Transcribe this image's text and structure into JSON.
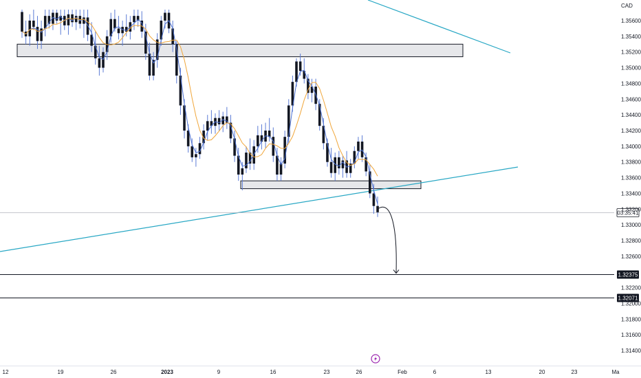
{
  "chart_data": {
    "type": "candlestick",
    "currency_label": "CAD",
    "price_range": [
      1.3126,
      1.3574
    ],
    "y_ticks": [
      1.356,
      1.354,
      1.352,
      1.35,
      1.348,
      1.346,
      1.344,
      1.342,
      1.34,
      1.338,
      1.336,
      1.334,
      1.332,
      1.33,
      1.328,
      1.326,
      1.322,
      1.32,
      1.318,
      1.316,
      1.314
    ],
    "y_tick_labels": [
      "1.35600",
      "1.35400",
      "1.35200",
      "1.35000",
      "1.34800",
      "1.34600",
      "1.34400",
      "1.34200",
      "1.34000",
      "1.33800",
      "1.33600",
      "1.33400",
      "1.33200",
      "1.33000",
      "1.32800",
      "1.32600",
      "1.32200",
      "1.32000",
      "1.31800",
      "1.31600",
      "1.31400"
    ],
    "x_ticks": [
      {
        "label": "12",
        "x": 8
      },
      {
        "label": "19",
        "x": 88
      },
      {
        "label": "26",
        "x": 165
      },
      {
        "label": "2023",
        "x": 243
      },
      {
        "label": "9",
        "x": 318
      },
      {
        "label": "16",
        "x": 397
      },
      {
        "label": "23",
        "x": 475
      },
      {
        "label": "26",
        "x": 522
      },
      {
        "label": "Feb",
        "x": 585
      },
      {
        "label": "6",
        "x": 632
      },
      {
        "label": "13",
        "x": 710
      },
      {
        "label": "20",
        "x": 788
      },
      {
        "label": "23",
        "x": 835
      },
      {
        "label": "Ma",
        "x": 895
      }
    ],
    "candles": [
      [
        1.3571,
        1.3574,
        1.3538,
        1.3546
      ],
      [
        1.3546,
        1.356,
        1.353,
        1.354
      ],
      [
        1.354,
        1.3568,
        1.3528,
        1.356
      ],
      [
        1.356,
        1.3574,
        1.3548,
        1.3552
      ],
      [
        1.3552,
        1.3566,
        1.3524,
        1.3534
      ],
      [
        1.3534,
        1.356,
        1.3524,
        1.355
      ],
      [
        1.355,
        1.3574,
        1.354,
        1.3566
      ],
      [
        1.3566,
        1.3574,
        1.355,
        1.3556
      ],
      [
        1.3556,
        1.3574,
        1.3548,
        1.357
      ],
      [
        1.357,
        1.3574,
        1.3556,
        1.356
      ],
      [
        1.356,
        1.3574,
        1.3542,
        1.3566
      ],
      [
        1.3566,
        1.3574,
        1.3548,
        1.3554
      ],
      [
        1.3554,
        1.3574,
        1.3542,
        1.3568
      ],
      [
        1.3568,
        1.3574,
        1.3552,
        1.3558
      ],
      [
        1.3558,
        1.3574,
        1.3548,
        1.3566
      ],
      [
        1.3566,
        1.3574,
        1.355,
        1.3556
      ],
      [
        1.3556,
        1.3574,
        1.3538,
        1.3564
      ],
      [
        1.3564,
        1.3574,
        1.3534,
        1.3542
      ],
      [
        1.3542,
        1.3558,
        1.352,
        1.3528
      ],
      [
        1.3528,
        1.3546,
        1.3504,
        1.3512
      ],
      [
        1.3512,
        1.3528,
        1.349,
        1.35
      ],
      [
        1.35,
        1.3526,
        1.3494,
        1.352
      ],
      [
        1.352,
        1.3548,
        1.351,
        1.354
      ],
      [
        1.354,
        1.357,
        1.3532,
        1.3562
      ],
      [
        1.3562,
        1.3574,
        1.3546,
        1.355
      ],
      [
        1.355,
        1.3566,
        1.3536,
        1.3544
      ],
      [
        1.3544,
        1.356,
        1.3528,
        1.3552
      ],
      [
        1.3552,
        1.3568,
        1.354,
        1.3546
      ],
      [
        1.3546,
        1.3566,
        1.3536,
        1.3558
      ],
      [
        1.3558,
        1.3574,
        1.3548,
        1.3566
      ],
      [
        1.3566,
        1.3574,
        1.3552,
        1.356
      ],
      [
        1.356,
        1.3572,
        1.3538,
        1.3546
      ],
      [
        1.3546,
        1.3556,
        1.351,
        1.3518
      ],
      [
        1.3518,
        1.3532,
        1.3484,
        1.349
      ],
      [
        1.349,
        1.352,
        1.3484,
        1.351
      ],
      [
        1.351,
        1.3544,
        1.35,
        1.3536
      ],
      [
        1.3536,
        1.3566,
        1.3528,
        1.356
      ],
      [
        1.356,
        1.3574,
        1.355,
        1.357
      ],
      [
        1.357,
        1.3574,
        1.3544,
        1.355
      ],
      [
        1.355,
        1.356,
        1.352,
        1.353
      ],
      [
        1.353,
        1.3534,
        1.348,
        1.349
      ],
      [
        1.349,
        1.35,
        1.344,
        1.3452
      ],
      [
        1.3452,
        1.346,
        1.341,
        1.342
      ],
      [
        1.342,
        1.3428,
        1.3392,
        1.34
      ],
      [
        1.34,
        1.341,
        1.338,
        1.3386
      ],
      [
        1.3386,
        1.3398,
        1.3374,
        1.339
      ],
      [
        1.339,
        1.3412,
        1.3384,
        1.3404
      ],
      [
        1.3404,
        1.3428,
        1.3396,
        1.342
      ],
      [
        1.342,
        1.344,
        1.3408,
        1.3432
      ],
      [
        1.3432,
        1.3446,
        1.3416,
        1.3426
      ],
      [
        1.3426,
        1.3442,
        1.3416,
        1.3436
      ],
      [
        1.3436,
        1.3446,
        1.342,
        1.3428
      ],
      [
        1.3428,
        1.3444,
        1.3418,
        1.3438
      ],
      [
        1.3438,
        1.345,
        1.3422,
        1.343
      ],
      [
        1.343,
        1.344,
        1.3404,
        1.341
      ],
      [
        1.341,
        1.342,
        1.338,
        1.3388
      ],
      [
        1.3388,
        1.3398,
        1.3356,
        1.3364
      ],
      [
        1.3364,
        1.338,
        1.3344,
        1.3372
      ],
      [
        1.3372,
        1.34,
        1.3366,
        1.3392
      ],
      [
        1.3392,
        1.341,
        1.337,
        1.3378
      ],
      [
        1.3378,
        1.3408,
        1.337,
        1.34
      ],
      [
        1.34,
        1.3426,
        1.3392,
        1.3414
      ],
      [
        1.3414,
        1.3428,
        1.3396,
        1.3406
      ],
      [
        1.3406,
        1.343,
        1.3398,
        1.342
      ],
      [
        1.342,
        1.3436,
        1.3406,
        1.3412
      ],
      [
        1.3412,
        1.3424,
        1.338,
        1.3388
      ],
      [
        1.3388,
        1.3398,
        1.3356,
        1.3364
      ],
      [
        1.3364,
        1.3386,
        1.3356,
        1.3378
      ],
      [
        1.3378,
        1.342,
        1.3372,
        1.3412
      ],
      [
        1.3412,
        1.346,
        1.3404,
        1.3452
      ],
      [
        1.3452,
        1.349,
        1.3444,
        1.3482
      ],
      [
        1.3482,
        1.3512,
        1.3476,
        1.3508
      ],
      [
        1.3508,
        1.3518,
        1.349,
        1.3496
      ],
      [
        1.3496,
        1.3512,
        1.348,
        1.3486
      ],
      [
        1.3486,
        1.3492,
        1.346,
        1.3468
      ],
      [
        1.3468,
        1.3486,
        1.3456,
        1.3476
      ],
      [
        1.3476,
        1.3486,
        1.3446,
        1.3454
      ],
      [
        1.3454,
        1.346,
        1.342,
        1.3426
      ],
      [
        1.3426,
        1.3436,
        1.3396,
        1.3404
      ],
      [
        1.3404,
        1.341,
        1.3374,
        1.338
      ],
      [
        1.338,
        1.3398,
        1.336,
        1.3366
      ],
      [
        1.3366,
        1.3392,
        1.3356,
        1.3386
      ],
      [
        1.3386,
        1.3394,
        1.3364,
        1.3372
      ],
      [
        1.3372,
        1.3388,
        1.336,
        1.3382
      ],
      [
        1.3382,
        1.3394,
        1.336,
        1.3366
      ],
      [
        1.3366,
        1.3384,
        1.336,
        1.3378
      ],
      [
        1.3378,
        1.34,
        1.3372,
        1.3394
      ],
      [
        1.3394,
        1.3412,
        1.3384,
        1.3406
      ],
      [
        1.3406,
        1.3414,
        1.338,
        1.3386
      ],
      [
        1.3386,
        1.3392,
        1.3362,
        1.3368
      ],
      [
        1.3368,
        1.3376,
        1.3334,
        1.334
      ],
      [
        1.334,
        1.3352,
        1.3314,
        1.3324
      ],
      [
        1.3324,
        1.3336,
        1.331,
        1.3316
      ]
    ],
    "price_lines": [
      {
        "value": 1.32375,
        "label": "1.32375"
      },
      {
        "value": 1.32071,
        "label": "1.32071"
      }
    ],
    "current_price_label": "03:35:41",
    "zones": [
      {
        "label": "resistance-zone",
        "price_top": 1.353,
        "price_bottom": 1.3514
      },
      {
        "label": "support-zone",
        "price_top": 1.3356,
        "price_bottom": 1.3346
      }
    ],
    "trendlines": [
      "descending-trendline",
      "ascending-trendline"
    ],
    "projection": "bearish projection arrow from recent low toward 1.32375",
    "colors": {
      "candle": "#131722",
      "wick": "#5b7bd5",
      "ma_fast": "#4a6fd1",
      "ma_slow": "#f0a63a",
      "trendline": "#27a7c4",
      "zone_fill": "#e6e7ea",
      "zone_border": "#131722",
      "tag_bg": "#131722",
      "logo": "#9c27b0"
    },
    "grid": false
  }
}
